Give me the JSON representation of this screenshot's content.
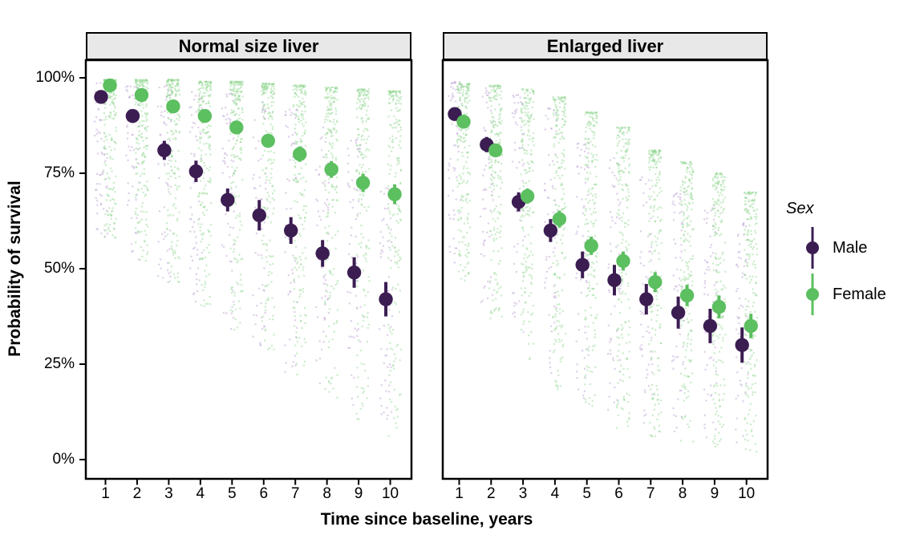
{
  "chart_data": {
    "type": "scatter",
    "subtype": "pointrange-with-jitter",
    "xlabel": "Time since baseline, years",
    "ylabel": "Probability of survival",
    "x": [
      1,
      2,
      3,
      4,
      5,
      6,
      7,
      8,
      9,
      10
    ],
    "y_tick_labels": [
      "0%",
      "25%",
      "50%",
      "75%",
      "100%"
    ],
    "y_tick_values": [
      0,
      25,
      50,
      75,
      100
    ],
    "ylim": [
      0,
      100
    ],
    "grid": "off",
    "legend": {
      "title": "Sex",
      "position": "right",
      "entries": [
        {
          "label": "Male",
          "color": "#3B1D52"
        },
        {
          "label": "Female",
          "color": "#5CBF60"
        }
      ]
    },
    "facets": [
      {
        "label": "Normal size liver",
        "series": [
          {
            "name": "Male",
            "color": "#3B1D52",
            "values": [
              95,
              90,
              81,
              75.5,
              68,
              64,
              60,
              54,
              49,
              42
            ],
            "err": [
              1.5,
              1.8,
              2.5,
              2.8,
              3,
              4,
              3.5,
              3.5,
              4,
              4.5
            ]
          },
          {
            "name": "Female",
            "color": "#5CBF60",
            "values": [
              98,
              95.5,
              92.5,
              90,
              87,
              83.5,
              80,
              76,
              72.5,
              69.5
            ],
            "err": [
              0.8,
              1,
              1.2,
              1.4,
              1.6,
              1.8,
              2,
              2.2,
              2.4,
              2.6
            ]
          }
        ]
      },
      {
        "label": "Enlarged liver",
        "series": [
          {
            "name": "Male",
            "color": "#3B1D52",
            "values": [
              90.5,
              82.5,
              67.5,
              60,
              51,
              47,
              42,
              38.5,
              35,
              30
            ],
            "err": [
              1.5,
              2,
              2.5,
              3,
              3.5,
              4,
              4,
              4.2,
              4.5,
              4.6
            ]
          },
          {
            "name": "Female",
            "color": "#5CBF60",
            "values": [
              88.5,
              81,
              69,
              63,
              56,
              52,
              46.5,
              43,
              40,
              35
            ],
            "err": [
              1.2,
              1.5,
              2,
              2.2,
              2.4,
              2.5,
              2.6,
              2.8,
              3,
              3.2
            ]
          }
        ]
      }
    ],
    "jitter": {
      "seed": 20240612,
      "half_width": 8,
      "point_size": 2.2,
      "clouds": [
        [
          {
            "sex": "Male",
            "color": "#BFa3d6",
            "opacity": 0.5,
            "count": 60,
            "k": 1.35,
            "tops": [
              99,
              98,
              98,
              97,
              96,
              94,
              92,
              88,
              84,
              72
            ],
            "bottoms": [
              58,
              52,
              46,
              40,
              34,
              28,
              22,
              16,
              10,
              6
            ]
          },
          {
            "sex": "Female",
            "color": "#8FD48F",
            "opacity": 0.45,
            "count": 200,
            "k": 2.3,
            "tops": [
              99.5,
              99.5,
              99.5,
              99,
              99,
              98.5,
              98,
              97.5,
              97,
              96.5
            ],
            "bottoms": [
              58,
              52,
              46,
              40,
              34,
              28,
              22,
              16,
              10,
              6
            ]
          }
        ],
        [
          {
            "sex": "Male",
            "color": "#BFa3d6",
            "opacity": 0.5,
            "count": 60,
            "k": 1.3,
            "tops": [
              99,
              98,
              96,
              92,
              83,
              79,
              74,
              70,
              67,
              62
            ],
            "bottoms": [
              50,
              40,
              30,
              22,
              16,
              12,
              9,
              7,
              5,
              4
            ]
          },
          {
            "sex": "Female",
            "color": "#8FD48F",
            "opacity": 0.45,
            "count": 200,
            "k": 1.8,
            "tops": [
              98.5,
              98,
              97,
              95,
              91,
              87,
              81,
              78,
              75,
              70
            ],
            "bottoms": [
              45,
              35,
              25,
              18,
              12,
              8,
              6,
              4,
              3,
              2
            ]
          }
        ]
      ]
    }
  }
}
